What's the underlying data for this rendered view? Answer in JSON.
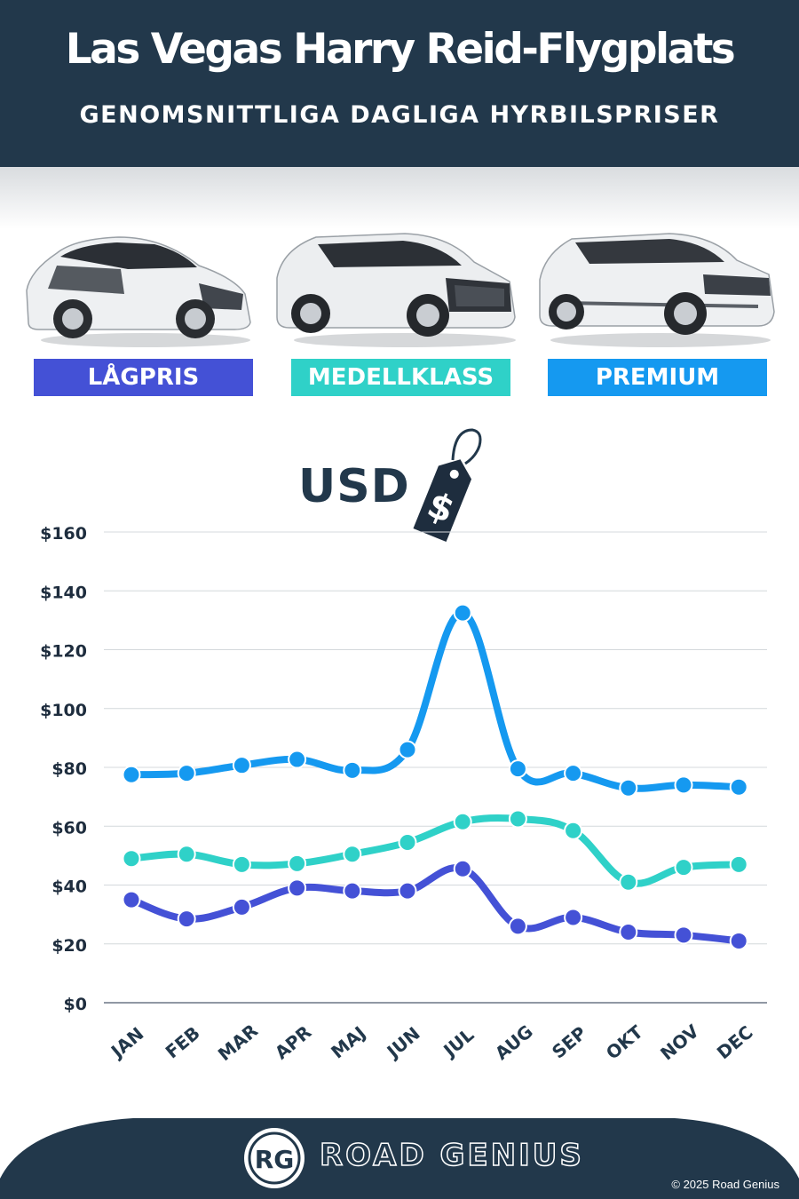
{
  "header": {
    "title": "Las Vegas Harry Reid-Flygplats",
    "subtitle": "GENOMSNITTLIGA DAGLIGA HYRBILSPRISER"
  },
  "categories": [
    {
      "label": "LÅGPRIS",
      "color": "#4451d6",
      "icon": "hatchback-car-icon"
    },
    {
      "label": "MEDELLKLASS",
      "color": "#2fd1c8",
      "icon": "suv-car-icon"
    },
    {
      "label": "PREMIUM",
      "color": "#1599f0",
      "icon": "luxury-suv-car-icon"
    }
  ],
  "currency": {
    "label": "USD",
    "tag_symbol": "$"
  },
  "chart_data": {
    "type": "line",
    "categories": [
      "JAN",
      "FEB",
      "MAR",
      "APR",
      "MAJ",
      "JUN",
      "JUL",
      "AUG",
      "SEP",
      "OKT",
      "NOV",
      "DEC"
    ],
    "y_tick_labels": [
      "$0",
      "$20",
      "$40",
      "$60",
      "$80",
      "$100",
      "$120",
      "$140",
      "$160"
    ],
    "ylim": [
      0,
      160
    ],
    "grid": true,
    "series": [
      {
        "name": "PREMIUM",
        "color": "#1599f0",
        "values": [
          77.5,
          78,
          80.7,
          82.7,
          79,
          86,
          132.5,
          79.5,
          78,
          73,
          74,
          73.3
        ]
      },
      {
        "name": "MEDELLKLASS",
        "color": "#2fd1c8",
        "values": [
          49,
          50.5,
          47,
          47.3,
          50.5,
          54.5,
          61.5,
          62.5,
          58.5,
          41,
          46,
          47
        ]
      },
      {
        "name": "LÅGPRIS",
        "color": "#4451d6",
        "values": [
          35,
          28.5,
          32.5,
          39,
          38,
          38,
          45.5,
          26,
          29,
          24,
          23,
          21
        ]
      }
    ]
  },
  "footer": {
    "logo_text": "RG",
    "brand": "ROAD GENIUS",
    "copyright": "© 2025 Road Genius",
    "background": "#22384b"
  }
}
